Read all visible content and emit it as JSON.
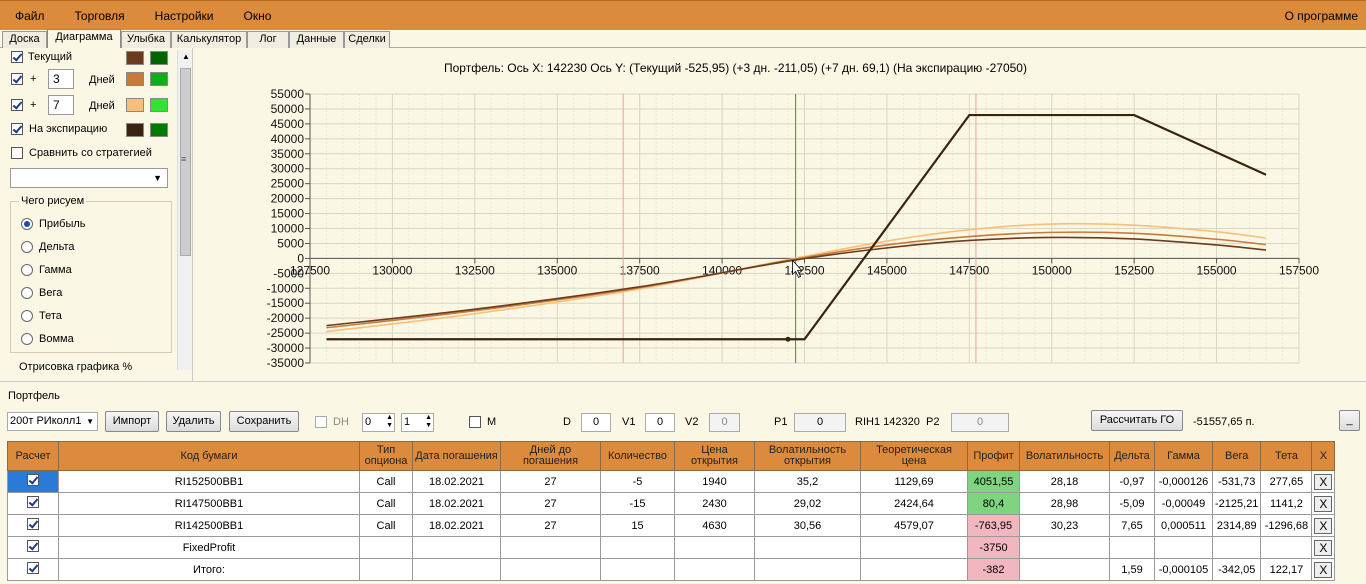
{
  "menu": {
    "items": [
      "Файл",
      "Торговля",
      "Настройки",
      "Окно"
    ],
    "about": "О программе"
  },
  "tabs": [
    "Доска",
    "Диаграмма",
    "Улыбка",
    "Калькулятор",
    "Лог",
    "Данные",
    "Сделки"
  ],
  "left": {
    "current_label": "Текущий",
    "plus": "+",
    "days_label": "Дней",
    "days1": "3",
    "days2": "7",
    "expiry_label": "На экспирацию",
    "compare_label": "Сравнить со стратегией",
    "group_title": "Чего рисуем",
    "radios": [
      "Прибыль",
      "Дельта",
      "Гамма",
      "Вега",
      "Тета",
      "Вомма"
    ],
    "render_label": "Отрисовка графика %"
  },
  "chart_title": "Портфель: Ось X:  142230 Ось Y:  (Текущий -525,95)  (+3 дн. -211,05)  (+7 дн. 69,1)  (На экспирацию -27050)",
  "chart_data": {
    "type": "line",
    "xlim": [
      127500,
      157500
    ],
    "ylim": [
      -35000,
      55000
    ],
    "x_ticks": [
      "127500",
      "130000",
      "132500",
      "135000",
      "137500",
      "140000",
      "142500",
      "145000",
      "147500",
      "150000",
      "152500",
      "155000",
      "157500"
    ],
    "y_ticks": [
      "55000",
      "50000",
      "45000",
      "40000",
      "35000",
      "30000",
      "25000",
      "20000",
      "15000",
      "10000",
      "5000",
      "0",
      "-5000",
      "-10000",
      "-15000",
      "-20000",
      "-25000",
      "-30000",
      "-35000"
    ],
    "colors": {
      "current": "#6b3a1f",
      "plus3": "#c87a3a",
      "plus7": "#f7c07a",
      "expiry": "#3a2410"
    },
    "series": [
      {
        "name": "Текущий",
        "x": [
          128000,
          132500,
          137500,
          142230,
          145000,
          147500,
          150000,
          152500,
          155000,
          156500
        ],
        "y": [
          -22500,
          -17000,
          -9500,
          -526,
          3500,
          6000,
          7000,
          6500,
          4500,
          2800
        ]
      },
      {
        "name": "+3 дн.",
        "x": [
          128000,
          132500,
          137500,
          142230,
          145000,
          147500,
          150000,
          152500,
          155000,
          156500
        ],
        "y": [
          -23200,
          -17500,
          -9800,
          -211,
          4500,
          7300,
          8700,
          8400,
          6400,
          4600
        ]
      },
      {
        "name": "+7 дн.",
        "x": [
          128000,
          132500,
          137500,
          142230,
          145000,
          147500,
          150000,
          152500,
          155000,
          156500
        ],
        "y": [
          -24500,
          -18500,
          -10200,
          69,
          5800,
          9600,
          11500,
          11100,
          8900,
          6800
        ]
      },
      {
        "name": "На экспирацию",
        "x": [
          128000,
          142000,
          142500,
          147500,
          152500,
          156500
        ],
        "y": [
          -27050,
          -27050,
          -27050,
          47950,
          47950,
          28000
        ]
      }
    ],
    "cursor_x": 142230,
    "red_lines_x": [
      137000,
      147700
    ]
  },
  "toolbar": {
    "portfolio_label": "Портфель",
    "portfolio_select": "200т РИколл1",
    "import": "Импорт",
    "delete": "Удалить",
    "save": "Сохранить",
    "dh": "DH",
    "step1": "0",
    "step2": "1",
    "m": "M",
    "d_label": "D",
    "d_val": "0",
    "v1_label": "V1",
    "v1_val": "0",
    "v2_label": "V2",
    "v2_val": "0",
    "p1_label": "P1",
    "p1_val": "0",
    "rih_label": "RIH1 142320",
    "p2_label": "P2",
    "p2_val": "0",
    "calc_go": "Рассчитать ГО",
    "go_value": "-51557,65 п.",
    "minimize": "_"
  },
  "table": {
    "headers": [
      "Расчет",
      "Код бумаги",
      "Тип опциона",
      "Дата погашения",
      "Дней до погашения",
      "Количество",
      "Цена открытия",
      "Волатильность открытия",
      "Теоретическая цена",
      "Профит",
      "Волатильность",
      "Дельта",
      "Гамма",
      "Вега",
      "Тета",
      "X"
    ],
    "rows": [
      {
        "code": "RI152500BB1",
        "type": "Call",
        "date": "18.02.2021",
        "days": "27",
        "qty": "-5",
        "price": "1940",
        "vol_open": "35,2",
        "theo": "1129,69",
        "profit": "4051,55",
        "vol": "28,18",
        "delta": "-0,97",
        "gamma": "-0,000126",
        "vega": "-531,73",
        "theta": "277,65",
        "x": "X"
      },
      {
        "code": "RI147500BB1",
        "type": "Call",
        "date": "18.02.2021",
        "days": "27",
        "qty": "-15",
        "price": "2430",
        "vol_open": "29,02",
        "theo": "2424,64",
        "profit": "80,4",
        "vol": "28,98",
        "delta": "-5,09",
        "gamma": "-0,00049",
        "vega": "-2125,21",
        "theta": "1141,2",
        "x": "X"
      },
      {
        "code": "RI142500BB1",
        "type": "Call",
        "date": "18.02.2021",
        "days": "27",
        "qty": "15",
        "price": "4630",
        "vol_open": "30,56",
        "theo": "4579,07",
        "profit": "-763,95",
        "vol": "30,23",
        "delta": "7,65",
        "gamma": "0,000511",
        "vega": "2314,89",
        "theta": "-1296,68",
        "x": "X"
      },
      {
        "code": "FixedProfit",
        "type": "",
        "date": "",
        "days": "",
        "qty": "",
        "price": "",
        "vol_open": "",
        "theo": "",
        "profit": "-3750",
        "vol": "",
        "delta": "",
        "gamma": "",
        "vega": "",
        "theta": "",
        "x": "X"
      },
      {
        "code": "Итого:",
        "type": "",
        "date": "",
        "days": "",
        "qty": "",
        "price": "",
        "vol_open": "",
        "theo": "",
        "profit": "-382",
        "vol": "",
        "delta": "1,59",
        "gamma": "-0,000105",
        "vega": "-342,05",
        "theta": "122,17",
        "x": "X"
      }
    ]
  }
}
